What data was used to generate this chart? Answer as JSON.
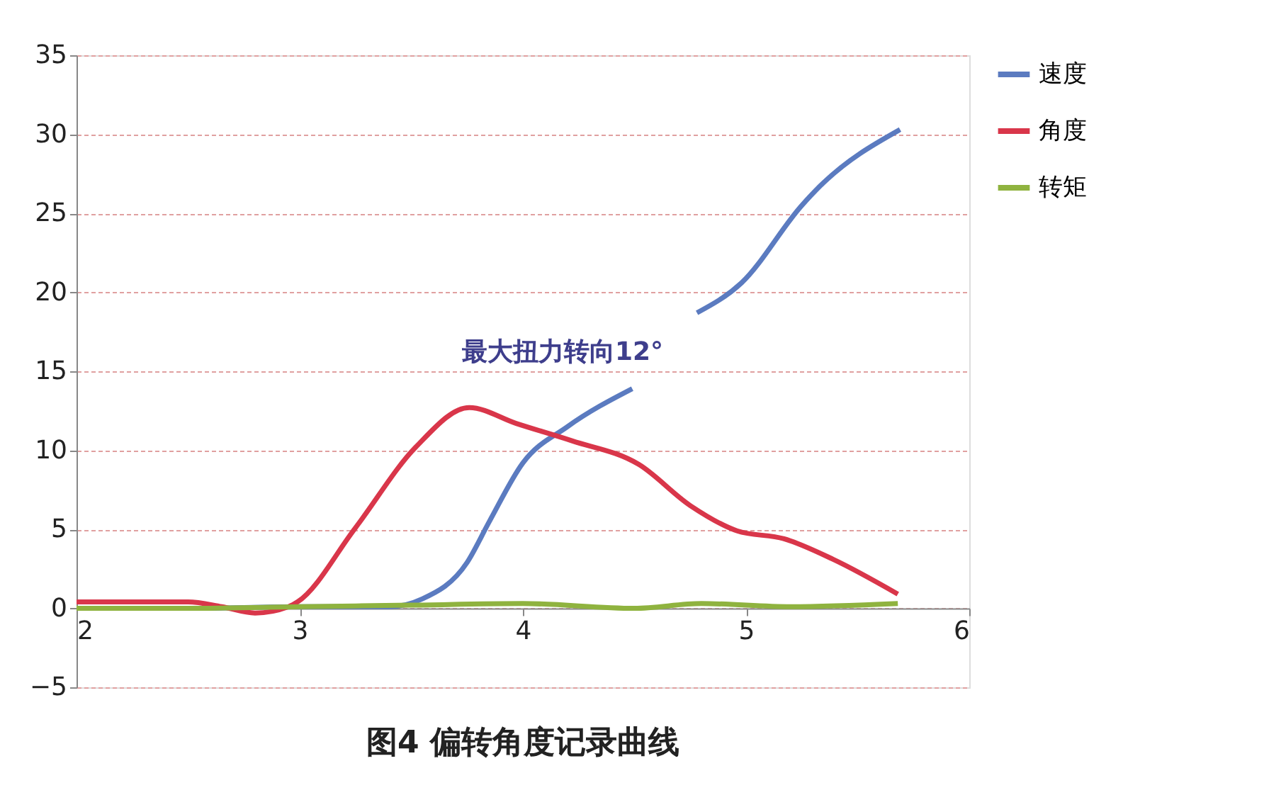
{
  "chart_data": {
    "type": "line",
    "title": "图4 偏转角度记录曲线",
    "xlim": [
      2,
      6
    ],
    "xticks": [
      2,
      3,
      4,
      5,
      6
    ],
    "ylim": [
      -5,
      35
    ],
    "yticks": [
      -5,
      0,
      5,
      10,
      15,
      20,
      25,
      30,
      35
    ],
    "grid": "y",
    "legend": "right",
    "marker": "none",
    "line_style": "solid",
    "annotations": [
      "最大扭力转向12°"
    ],
    "series": [
      {
        "name": "速度",
        "color": "#5b7bc0",
        "x": [
          2,
          2.5,
          3,
          3.4,
          3.55,
          3.75,
          3.85,
          4.0,
          4.2,
          4.49,
          4.6,
          4.78,
          4.98,
          5.25,
          5.33,
          5.69
        ],
        "values": [
          0,
          0,
          0.1,
          0.1,
          0.6,
          2.9,
          5.5,
          9.2,
          11.5,
          13.9,
          null,
          18.7,
          20.6,
          25.5,
          26.7,
          30.3
        ]
      },
      {
        "name": "角度",
        "color": "#d9364a",
        "x": [
          2,
          2.5,
          2.65,
          2.8,
          2.95,
          2.99,
          3.25,
          3.52,
          3.76,
          3.97,
          4.22,
          4.52,
          4.75,
          4.96,
          5.17,
          5.39,
          5.68
        ],
        "values": [
          0.4,
          0.4,
          0.1,
          -0.3,
          0.1,
          0.4,
          5.1,
          10.2,
          12.7,
          11.7,
          10.6,
          9.1,
          6.5,
          4.9,
          4.4,
          3.1,
          0.9
        ]
      },
      {
        "name": "转矩",
        "color": "#8fb33f",
        "x": [
          2,
          2.5,
          3,
          3.5,
          4,
          4.5,
          4.8,
          5.2,
          5.68
        ],
        "values": [
          0,
          0,
          0.1,
          0.2,
          0.3,
          0.0,
          0.3,
          0.1,
          0.3
        ]
      }
    ]
  }
}
